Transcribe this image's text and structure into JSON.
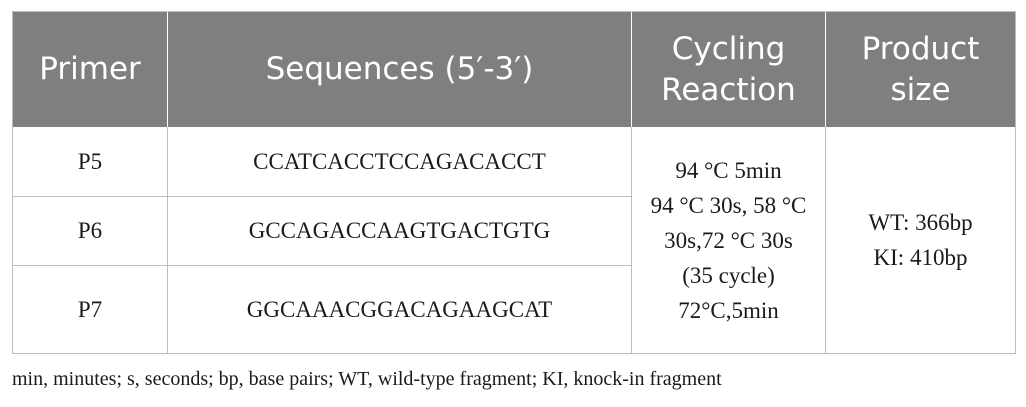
{
  "table": {
    "headers": [
      "Primer",
      "Sequences (5′-3′)",
      "Cycling Reaction",
      "Product size"
    ],
    "rows": [
      {
        "primer": "P5",
        "sequence": "CCATCACCTCCAGACACCT"
      },
      {
        "primer": "P6",
        "sequence": "GCCAGACCAAGTGACTGTG"
      },
      {
        "primer": "P7",
        "sequence": "GGCAAACGGACAGAAGCAT"
      }
    ],
    "cycling_lines": [
      "94 °C 5min",
      "94 °C 30s, 58 °C",
      "30s,72 °C 30s",
      "(35 cycle)",
      "72°C,5min"
    ],
    "product_lines": [
      "WT: 366bp",
      "KI: 410bp"
    ]
  },
  "footnote": "min, minutes; s, seconds; bp, base pairs; WT, wild-type fragment; KI, knock-in fragment"
}
